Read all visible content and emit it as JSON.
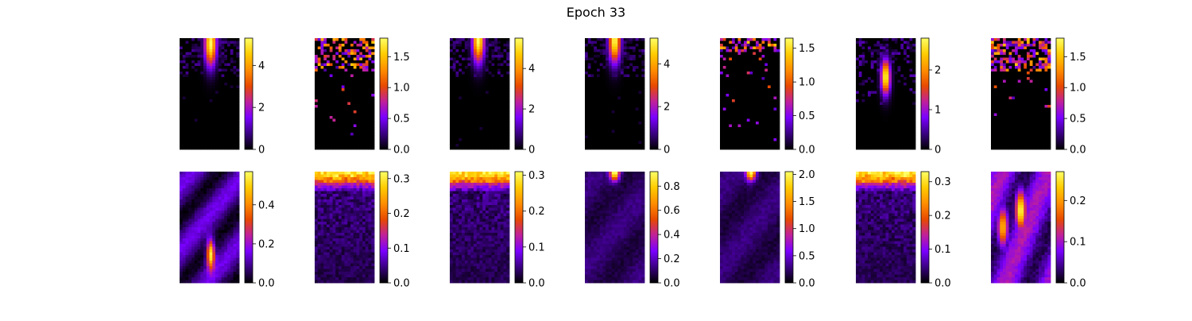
{
  "figure": {
    "title": "Epoch 33"
  },
  "colormap": [
    "#000000",
    "#3a0082",
    "#7a00ff",
    "#c0209a",
    "#e84a00",
    "#ff8e00",
    "#ffcc00",
    "#ffff66"
  ],
  "chart_data": [
    {
      "type": "heatmap",
      "row": 1,
      "col": 1,
      "grid": [
        20,
        40
      ],
      "clim": [
        0,
        5.3
      ],
      "colorbar_ticks": [
        "0",
        "2",
        "4"
      ],
      "colorbar_values": [
        0,
        2,
        4
      ],
      "pattern": "top-hotspot",
      "hotspot": {
        "x": 0.52,
        "y": 0.05,
        "peak": 5.3
      }
    },
    {
      "type": "heatmap",
      "row": 1,
      "col": 2,
      "grid": [
        20,
        40
      ],
      "clim": [
        0,
        1.8
      ],
      "colorbar_ticks": [
        "0.0",
        "0.5",
        "1.0",
        "1.5"
      ],
      "colorbar_values": [
        0,
        0.5,
        1.0,
        1.5
      ],
      "pattern": "sparse-top"
    },
    {
      "type": "heatmap",
      "row": 1,
      "col": 3,
      "grid": [
        20,
        40
      ],
      "clim": [
        0,
        5.5
      ],
      "colorbar_ticks": [
        "0",
        "2",
        "4"
      ],
      "colorbar_values": [
        0,
        2,
        4
      ],
      "pattern": "top-hotspot",
      "hotspot": {
        "x": 0.48,
        "y": 0.02,
        "peak": 5.5
      }
    },
    {
      "type": "heatmap",
      "row": 1,
      "col": 4,
      "grid": [
        20,
        40
      ],
      "clim": [
        0,
        5.2
      ],
      "colorbar_ticks": [
        "0",
        "2",
        "4"
      ],
      "colorbar_values": [
        0,
        2,
        4
      ],
      "pattern": "top-hotspot",
      "hotspot": {
        "x": 0.5,
        "y": 0.02,
        "peak": 5.2
      }
    },
    {
      "type": "heatmap",
      "row": 1,
      "col": 5,
      "grid": [
        20,
        40
      ],
      "clim": [
        0,
        1.65
      ],
      "colorbar_ticks": [
        "0.0",
        "0.5",
        "1.0",
        "1.5"
      ],
      "colorbar_values": [
        0,
        0.5,
        1.0,
        1.5
      ],
      "pattern": "sparse-top-narrow"
    },
    {
      "type": "heatmap",
      "row": 1,
      "col": 6,
      "grid": [
        20,
        40
      ],
      "clim": [
        0,
        2.8
      ],
      "colorbar_ticks": [
        "0",
        "1",
        "2"
      ],
      "colorbar_values": [
        0,
        1,
        2
      ],
      "pattern": "mid-hotspot",
      "hotspot": {
        "x": 0.5,
        "y": 0.35,
        "peak": 2.8
      }
    },
    {
      "type": "heatmap",
      "row": 1,
      "col": 7,
      "grid": [
        20,
        40
      ],
      "clim": [
        0,
        1.8
      ],
      "colorbar_ticks": [
        "0.0",
        "0.5",
        "1.0",
        "1.5"
      ],
      "colorbar_values": [
        0,
        0.5,
        1.0,
        1.5
      ],
      "pattern": "sparse-top"
    },
    {
      "type": "heatmap",
      "row": 2,
      "col": 1,
      "grid": [
        20,
        40
      ],
      "clim": [
        0,
        0.57
      ],
      "colorbar_ticks": [
        "0.0",
        "0.2",
        "0.4"
      ],
      "colorbar_values": [
        0,
        0.2,
        0.4
      ],
      "pattern": "diffuse-hotspot",
      "hotspot": {
        "x": 0.52,
        "y": 0.74,
        "peak": 0.57
      }
    },
    {
      "type": "heatmap",
      "row": 2,
      "col": 2,
      "grid": [
        20,
        40
      ],
      "clim": [
        0,
        0.32
      ],
      "colorbar_ticks": [
        "0.0",
        "0.1",
        "0.2",
        "0.3"
      ],
      "colorbar_values": [
        0,
        0.1,
        0.2,
        0.3
      ],
      "pattern": "top-band"
    },
    {
      "type": "heatmap",
      "row": 2,
      "col": 3,
      "grid": [
        20,
        40
      ],
      "clim": [
        0,
        0.31
      ],
      "colorbar_ticks": [
        "0.0",
        "0.1",
        "0.2",
        "0.3"
      ],
      "colorbar_values": [
        0,
        0.1,
        0.2,
        0.3
      ],
      "pattern": "top-band"
    },
    {
      "type": "heatmap",
      "row": 2,
      "col": 4,
      "grid": [
        20,
        40
      ],
      "clim": [
        0,
        0.92
      ],
      "colorbar_ticks": [
        "0.0",
        "0.2",
        "0.4",
        "0.6",
        "0.8"
      ],
      "colorbar_values": [
        0,
        0.2,
        0.4,
        0.6,
        0.8
      ],
      "pattern": "smooth-top",
      "hotspot": {
        "x": 0.5,
        "y": 0.0,
        "peak": 0.92
      }
    },
    {
      "type": "heatmap",
      "row": 2,
      "col": 5,
      "grid": [
        20,
        40
      ],
      "clim": [
        0,
        2.05
      ],
      "colorbar_ticks": [
        "0.0",
        "0.5",
        "1.0",
        "1.5",
        "2.0"
      ],
      "colorbar_values": [
        0,
        0.5,
        1.0,
        1.5,
        2.0
      ],
      "pattern": "smooth-top",
      "hotspot": {
        "x": 0.52,
        "y": 0.0,
        "peak": 2.05
      }
    },
    {
      "type": "heatmap",
      "row": 2,
      "col": 6,
      "grid": [
        20,
        40
      ],
      "clim": [
        0,
        0.33
      ],
      "colorbar_ticks": [
        "0.0",
        "0.1",
        "0.2",
        "0.3"
      ],
      "colorbar_values": [
        0,
        0.1,
        0.2,
        0.3
      ],
      "pattern": "top-band"
    },
    {
      "type": "heatmap",
      "row": 2,
      "col": 7,
      "grid": [
        20,
        40
      ],
      "clim": [
        0,
        0.27
      ],
      "colorbar_ticks": [
        "0.0",
        "0.1",
        "0.2"
      ],
      "colorbar_values": [
        0,
        0.1,
        0.2
      ],
      "pattern": "multi-hotspot",
      "hotspots": [
        {
          "x": 0.5,
          "y": 0.35,
          "peak": 0.27
        },
        {
          "x": 0.2,
          "y": 0.5,
          "peak": 0.22
        }
      ]
    }
  ]
}
